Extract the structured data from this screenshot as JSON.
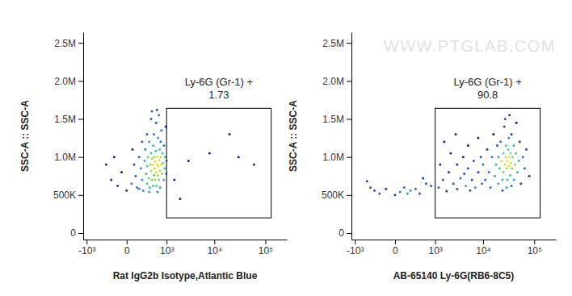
{
  "chart_data": [
    {
      "type": "scatter",
      "log": "x",
      "x_label": "Rat IgG2b Isotype,Atlantic Blue",
      "y_label": "SSC-A :: SSC-A",
      "xlim": [
        -1200,
        262144
      ],
      "ylim": [
        -85000,
        2640000
      ],
      "xticks": [
        {
          "value": -1000,
          "label": "-10³"
        },
        0,
        {
          "value": 1000,
          "label": "10³"
        },
        {
          "value": 10000,
          "label": "10⁴"
        },
        {
          "value": 100000,
          "label": "10⁵"
        }
      ],
      "yticks": [
        0,
        {
          "value": 500000,
          "label": "500K"
        },
        {
          "value": 1000000,
          "label": "1.0M"
        },
        {
          "value": 1500000,
          "label": "1.5M"
        },
        {
          "value": 2000000,
          "label": "2.0M"
        },
        {
          "value": 2500000,
          "label": "2.5M"
        }
      ],
      "gate": {
        "name": "Ly-6G (Gr-1) +",
        "percent": 1.73,
        "x": [
          1000,
          130000
        ],
        "y": [
          200000,
          1640000
        ]
      },
      "x": [
        -200,
        -100,
        -50,
        0,
        50,
        80,
        100,
        120,
        150,
        180,
        200,
        220,
        250,
        260,
        280,
        300,
        300,
        320,
        340,
        350,
        360,
        380,
        400,
        400,
        420,
        430,
        450,
        450,
        460,
        480,
        500,
        500,
        510,
        520,
        540,
        550,
        560,
        580,
        600,
        600,
        620,
        630,
        650,
        660,
        680,
        700,
        700,
        720,
        740,
        750,
        780,
        800,
        820,
        850,
        870,
        900,
        920,
        950,
        980,
        1000,
        400,
        550,
        650,
        300,
        200,
        150,
        350,
        600,
        720,
        480,
        -300,
        -150,
        60,
        420,
        580,
        2000,
        3000,
        8000,
        20000,
        30000,
        60000,
        1500
      ],
      "values": [
        700000,
        620000,
        800000,
        560000,
        650000,
        900000,
        750000,
        600000,
        1000000,
        850000,
        700000,
        560000,
        950000,
        1100000,
        780000,
        650000,
        880000,
        1000000,
        720000,
        1200000,
        600000,
        900000,
        820000,
        1050000,
        700000,
        980000,
        620000,
        900000,
        1150000,
        760000,
        850000,
        1000000,
        700000,
        940000,
        1080000,
        800000,
        620000,
        900000,
        1000000,
        760000,
        1250000,
        880000,
        700000,
        960000,
        1100000,
        820000,
        600000,
        1000000,
        900000,
        1350000,
        780000,
        1050000,
        920000,
        700000,
        1150000,
        850000,
        1000000,
        1400000,
        780000,
        950000,
        1500000,
        1450000,
        1550000,
        1300000,
        1200000,
        580000,
        540000,
        540000,
        1200000,
        1300000,
        900000,
        1000000,
        1100000,
        1600000,
        1620000,
        450000,
        950000,
        1050000,
        1300000,
        1000000,
        900000,
        700000
      ]
    },
    {
      "type": "scatter",
      "log": "x",
      "x_label": "AB-65140 Ly-6G(RB6-8C5)",
      "y_label": "SSC-A :: SSC-A",
      "watermark": "WWW.PTGLAB.COM",
      "xlim": [
        -1200,
        262144
      ],
      "ylim": [
        -85000,
        2640000
      ],
      "xticks": [
        {
          "value": -1000,
          "label": "-10³"
        },
        0,
        {
          "value": 1000,
          "label": "10³"
        },
        {
          "value": 10000,
          "label": "10⁴"
        },
        {
          "value": 100000,
          "label": "10⁵"
        }
      ],
      "yticks": [
        0,
        {
          "value": 500000,
          "label": "500K"
        },
        {
          "value": 1000000,
          "label": "1.0M"
        },
        {
          "value": 1500000,
          "label": "1.5M"
        },
        {
          "value": 2000000,
          "label": "2.0M"
        },
        {
          "value": 2500000,
          "label": "2.5M"
        }
      ],
      "gate": {
        "name": "Ly-6G (Gr-1) +",
        "percent": 90.8,
        "x": [
          1000,
          130000
        ],
        "y": [
          200000,
          1640000
        ]
      },
      "x": [
        -300,
        -200,
        -100,
        0,
        50,
        100,
        150,
        200,
        300,
        -400,
        400,
        600,
        800,
        500,
        -500,
        1200,
        1500,
        1800,
        2000,
        2500,
        3000,
        3000,
        3500,
        4000,
        4500,
        5000,
        5000,
        6000,
        6500,
        7000,
        8000,
        8000,
        9000,
        9500,
        2200,
        1300,
        1600,
        2800,
        4200,
        5500,
        10000,
        11000,
        12000,
        13000,
        14000,
        15000,
        16000,
        17000,
        18000,
        19000,
        20000,
        20000,
        21000,
        22000,
        23000,
        24000,
        25000,
        25000,
        26000,
        27000,
        28000,
        28000,
        29000,
        30000,
        30000,
        31000,
        32000,
        32000,
        33000,
        34000,
        35000,
        35000,
        36000,
        37000,
        38000,
        40000,
        40000,
        42000,
        44000,
        45000,
        47000,
        50000,
        52000,
        55000,
        60000,
        65000,
        70000,
        80000,
        27000,
        33000,
        29000,
        24000,
        36000
      ],
      "values": [
        560000,
        520000,
        580000,
        500000,
        540000,
        600000,
        520000,
        560000,
        580000,
        600000,
        520000,
        650000,
        620000,
        720000,
        680000,
        600000,
        700000,
        550000,
        800000,
        650000,
        900000,
        580000,
        720000,
        1000000,
        620000,
        850000,
        1150000,
        700000,
        950000,
        600000,
        1250000,
        800000,
        1000000,
        650000,
        1050000,
        900000,
        1200000,
        1300000,
        780000,
        560000,
        900000,
        700000,
        1100000,
        800000,
        600000,
        1000000,
        1300000,
        750000,
        900000,
        1150000,
        650000,
        1000000,
        850000,
        1200000,
        950000,
        700000,
        1050000,
        800000,
        1400000,
        900000,
        1000000,
        1150000,
        850000,
        950000,
        700000,
        1100000,
        1250000,
        880000,
        1000000,
        760000,
        1050000,
        920000,
        1300000,
        850000,
        1000000,
        1150000,
        700000,
        900000,
        1050000,
        1450000,
        800000,
        950000,
        1200000,
        650000,
        1000000,
        850000,
        1100000,
        750000,
        1500000,
        1550000,
        600000,
        560000,
        620000
      ]
    }
  ]
}
